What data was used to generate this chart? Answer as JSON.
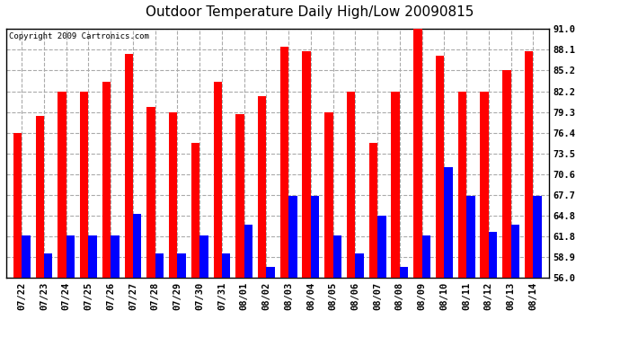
{
  "title": "Outdoor Temperature Daily High/Low 20090815",
  "copyright": "Copyright 2009 Cartronics.com",
  "dates": [
    "07/22",
    "07/23",
    "07/24",
    "07/25",
    "07/26",
    "07/27",
    "07/28",
    "07/29",
    "07/30",
    "07/31",
    "08/01",
    "08/02",
    "08/03",
    "08/04",
    "08/05",
    "08/06",
    "08/07",
    "08/08",
    "08/09",
    "08/10",
    "08/11",
    "08/12",
    "08/13",
    "08/14"
  ],
  "highs": [
    76.4,
    78.8,
    82.2,
    82.2,
    83.5,
    87.5,
    80.0,
    79.3,
    75.0,
    83.5,
    79.0,
    81.5,
    88.5,
    87.8,
    79.3,
    82.2,
    75.0,
    82.2,
    91.0,
    87.2,
    82.2,
    82.2,
    85.2,
    87.8
  ],
  "lows": [
    62.0,
    59.5,
    62.0,
    62.0,
    62.0,
    65.0,
    59.5,
    59.5,
    62.0,
    59.5,
    63.5,
    57.5,
    67.5,
    67.5,
    62.0,
    59.5,
    64.8,
    57.5,
    62.0,
    71.5,
    67.5,
    62.5,
    63.5,
    67.5
  ],
  "high_color": "#ff0000",
  "low_color": "#0000ff",
  "bg_color": "#ffffff",
  "grid_color": "#aaaaaa",
  "ylim_min": 56.0,
  "ylim_max": 91.0,
  "yticks": [
    56.0,
    58.9,
    61.8,
    64.8,
    67.7,
    70.6,
    73.5,
    76.4,
    79.3,
    82.2,
    85.2,
    88.1,
    91.0
  ],
  "bar_width": 0.38,
  "title_fontsize": 11,
  "tick_fontsize": 7.5,
  "copyright_fontsize": 6.5
}
